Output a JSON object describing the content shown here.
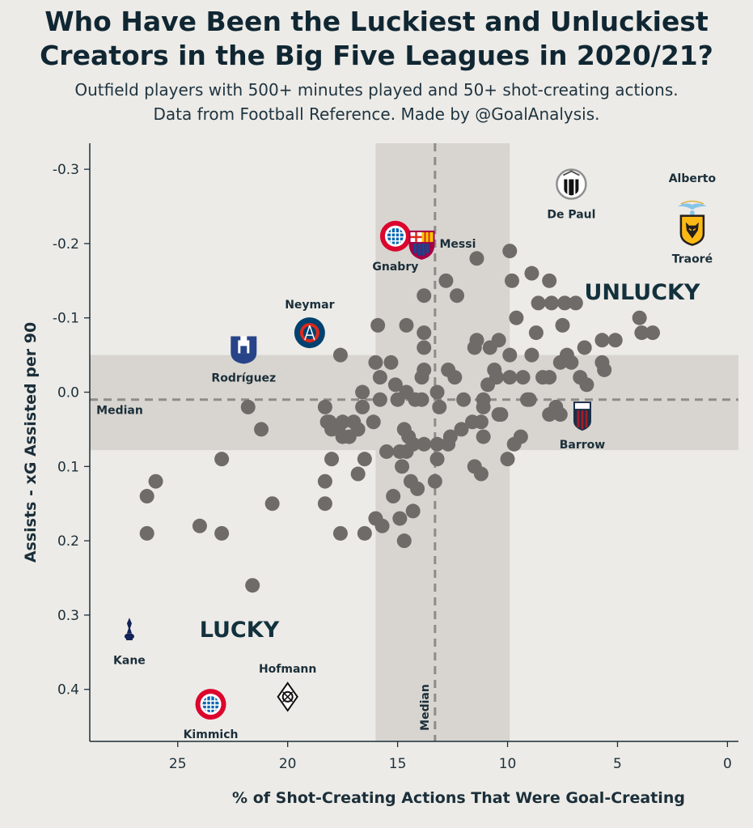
{
  "header": {
    "title_line1": "Who Have Been the Luckiest and Unluckiest",
    "title_line2": "Creators in the Big Five Leagues in 2020/21?",
    "subtitle_line1": "Outfield players with 500+ minutes played and 50+ shot-creating actions.",
    "subtitle_line2": "Data from Football Reference. Made by @GoalAnalysis."
  },
  "chart_data": {
    "type": "scatter",
    "xlabel": "% of Shot-Creating Actions That Were Goal-Creating",
    "ylabel": "Assists - xG Assisted per 90",
    "xlim": [
      29,
      -0.5
    ],
    "ylim": [
      -0.335,
      0.47
    ],
    "x_inverted": true,
    "y_inverted": true,
    "xticks": [
      25,
      20,
      15,
      10,
      5,
      0
    ],
    "yticks": [
      -0.3,
      -0.2,
      -0.1,
      0.0,
      0.1,
      0.2,
      0.3,
      0.4
    ],
    "ytick_labels": [
      "-0.3",
      "-0.2",
      "-0.1",
      "0.0",
      "0.1",
      "0.2",
      "0.3",
      "0.4"
    ],
    "median_x": 13.3,
    "median_y": 0.01,
    "median_label": "Median",
    "x_band": [
      16,
      9.9
    ],
    "y_band": [
      -0.05,
      0.078
    ],
    "zones": {
      "lucky": "LUCKY",
      "unlucky": "UNLUCKY"
    },
    "points": [
      [
        9.9,
        -0.19
      ],
      [
        9.8,
        -0.15
      ],
      [
        8.9,
        -0.16
      ],
      [
        8.1,
        -0.15
      ],
      [
        11.4,
        -0.18
      ],
      [
        12.8,
        -0.15
      ],
      [
        12.3,
        -0.13
      ],
      [
        13.8,
        -0.13
      ],
      [
        9.6,
        -0.1
      ],
      [
        8.6,
        -0.12
      ],
      [
        8.0,
        -0.12
      ],
      [
        7.4,
        -0.12
      ],
      [
        6.9,
        -0.12
      ],
      [
        7.5,
        -0.09
      ],
      [
        8.7,
        -0.08
      ],
      [
        14.6,
        -0.09
      ],
      [
        15.9,
        -0.09
      ],
      [
        13.8,
        -0.08
      ],
      [
        11.4,
        -0.07
      ],
      [
        10.4,
        -0.07
      ],
      [
        4.0,
        -0.1
      ],
      [
        3.9,
        -0.08
      ],
      [
        3.4,
        -0.08
      ],
      [
        5.7,
        -0.07
      ],
      [
        5.1,
        -0.07
      ],
      [
        6.5,
        -0.06
      ],
      [
        7.3,
        -0.05
      ],
      [
        7.6,
        -0.04
      ],
      [
        7.1,
        -0.04
      ],
      [
        8.9,
        -0.05
      ],
      [
        9.9,
        -0.05
      ],
      [
        10.8,
        -0.06
      ],
      [
        11.5,
        -0.06
      ],
      [
        13.8,
        -0.06
      ],
      [
        15.3,
        -0.04
      ],
      [
        16.0,
        -0.04
      ],
      [
        17.6,
        -0.05
      ],
      [
        5.7,
        -0.04
      ],
      [
        5.6,
        -0.03
      ],
      [
        6.7,
        -0.02
      ],
      [
        6.4,
        -0.01
      ],
      [
        8.1,
        -0.02
      ],
      [
        8.4,
        -0.02
      ],
      [
        9.3,
        -0.02
      ],
      [
        9.9,
        -0.02
      ],
      [
        10.6,
        -0.03
      ],
      [
        10.9,
        -0.01
      ],
      [
        10.5,
        -0.02
      ],
      [
        12.4,
        -0.02
      ],
      [
        12.7,
        -0.03
      ],
      [
        13.8,
        -0.03
      ],
      [
        13.9,
        -0.02
      ],
      [
        15.1,
        -0.01
      ],
      [
        15.8,
        -0.02
      ],
      [
        14.6,
        0.0
      ],
      [
        14.2,
        0.01
      ],
      [
        13.9,
        0.01
      ],
      [
        13.2,
        0.0
      ],
      [
        13.1,
        0.02
      ],
      [
        12.0,
        0.01
      ],
      [
        11.1,
        0.01
      ],
      [
        10.3,
        0.03
      ],
      [
        9.1,
        0.01
      ],
      [
        7.8,
        0.02
      ],
      [
        7.6,
        0.03
      ],
      [
        16.6,
        0.0
      ],
      [
        16.6,
        0.02
      ],
      [
        15.8,
        0.01
      ],
      [
        15.0,
        0.01
      ],
      [
        14.7,
        0.05
      ],
      [
        14.5,
        0.06
      ],
      [
        14.6,
        0.08
      ],
      [
        14.3,
        0.07
      ],
      [
        15.5,
        0.08
      ],
      [
        16.1,
        0.04
      ],
      [
        17.0,
        0.04
      ],
      [
        17.5,
        0.04
      ],
      [
        17.7,
        0.05
      ],
      [
        17.2,
        0.06
      ],
      [
        17.5,
        0.06
      ],
      [
        18.1,
        0.04
      ],
      [
        18.3,
        0.02
      ],
      [
        18.2,
        0.04
      ],
      [
        18.0,
        0.05
      ],
      [
        16.8,
        0.05
      ],
      [
        16.5,
        0.09
      ],
      [
        16.8,
        0.11
      ],
      [
        18.0,
        0.09
      ],
      [
        18.3,
        0.12
      ],
      [
        18.3,
        0.15
      ],
      [
        17.6,
        0.19
      ],
      [
        16.5,
        0.19
      ],
      [
        16.0,
        0.17
      ],
      [
        15.7,
        0.18
      ],
      [
        15.2,
        0.14
      ],
      [
        14.9,
        0.17
      ],
      [
        14.7,
        0.2
      ],
      [
        14.4,
        0.12
      ],
      [
        14.1,
        0.13
      ],
      [
        14.3,
        0.16
      ],
      [
        14.9,
        0.08
      ],
      [
        14.8,
        0.1
      ],
      [
        13.8,
        0.07
      ],
      [
        13.2,
        0.07
      ],
      [
        12.6,
        0.06
      ],
      [
        12.1,
        0.05
      ],
      [
        11.6,
        0.04
      ],
      [
        11.2,
        0.04
      ],
      [
        11.1,
        0.06
      ],
      [
        12.7,
        0.07
      ],
      [
        13.2,
        0.09
      ],
      [
        13.3,
        0.12
      ],
      [
        11.5,
        0.1
      ],
      [
        11.2,
        0.11
      ],
      [
        10.0,
        0.09
      ],
      [
        9.7,
        0.07
      ],
      [
        9.4,
        0.06
      ],
      [
        10.4,
        0.03
      ],
      [
        11.1,
        0.02
      ],
      [
        9.0,
        0.01
      ],
      [
        8.1,
        0.03
      ],
      [
        21.8,
        0.02
      ],
      [
        21.2,
        0.05
      ],
      [
        23.0,
        0.09
      ],
      [
        26.0,
        0.12
      ],
      [
        26.4,
        0.14
      ],
      [
        26.4,
        0.19
      ],
      [
        24.0,
        0.18
      ],
      [
        23.0,
        0.19
      ],
      [
        20.7,
        0.15
      ],
      [
        21.6,
        0.26
      ]
    ],
    "labeled_players": [
      {
        "name": "Kimmich",
        "x": 23.5,
        "y": 0.42,
        "label_pos": "below",
        "logo": "bayern-crest"
      },
      {
        "name": "Hofmann",
        "x": 20.0,
        "y": 0.41,
        "label_pos": "above",
        "logo": "gladbach-crest"
      },
      {
        "name": "Kane",
        "x": 27.2,
        "y": 0.32,
        "label_pos": "below",
        "logo": "tottenham-crest"
      },
      {
        "name": "Rodríguez",
        "x": 22.0,
        "y": -0.06,
        "label_pos": "below",
        "logo": "everton-crest"
      },
      {
        "name": "Neymar",
        "x": 19.0,
        "y": -0.08,
        "label_pos": "above",
        "logo": "psg-crest"
      },
      {
        "name": "Gnabry",
        "x": 15.1,
        "y": -0.21,
        "label_pos": "below",
        "logo": "bayern-crest"
      },
      {
        "name": "Messi",
        "x": 13.9,
        "y": -0.2,
        "label_pos": "right",
        "logo": "barcelona-crest"
      },
      {
        "name": "De Paul",
        "x": 7.1,
        "y": -0.28,
        "label_pos": "below",
        "logo": "udinese-crest"
      },
      {
        "name": "Alberto",
        "x": 1.6,
        "y": -0.25,
        "label_pos": "above",
        "logo": "lazio-eagle"
      },
      {
        "name": "Traoré",
        "x": 1.6,
        "y": -0.22,
        "label_pos": "below",
        "logo": "wolves-crest"
      },
      {
        "name": "Barrow",
        "x": 6.6,
        "y": 0.03,
        "label_pos": "below",
        "logo": "bologna-crest"
      }
    ],
    "colors": {
      "background": "#edebe7",
      "points": "#6e6b69",
      "band": "#d8d5d0",
      "median_line": "#8e8c89",
      "axis": "#1b2f3a"
    }
  }
}
